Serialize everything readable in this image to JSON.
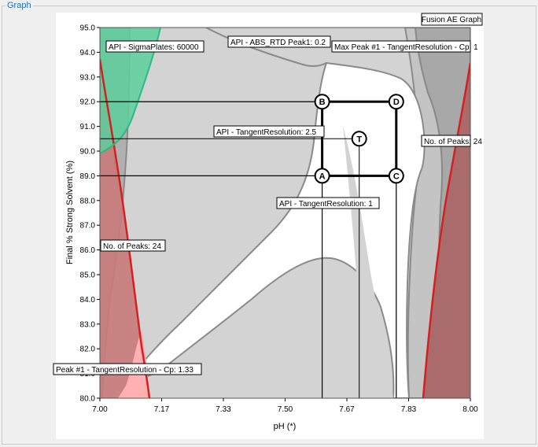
{
  "group": {
    "title": "Graph"
  },
  "chart_data": {
    "type": "contour-overlay",
    "title": "Fusion AE Graph",
    "xlabel": "pH (*)",
    "ylabel": "Final % Strong Solvent (%)",
    "xlim": [
      7.0,
      8.0
    ],
    "ylim": [
      80.0,
      95.0
    ],
    "xticks": [
      "7.00",
      "7.17",
      "7.33",
      "7.50",
      "7.67",
      "7.83",
      "8.00"
    ],
    "xtick_values": [
      7.0,
      7.1667,
      7.3333,
      7.5,
      7.6667,
      7.8333,
      8.0
    ],
    "yticks": [
      "80.0",
      "81.0",
      "82.0",
      "83.0",
      "84.0",
      "85.0",
      "86.0",
      "87.0",
      "88.0",
      "89.0",
      "90.0",
      "91.0",
      "92.0",
      "93.0",
      "94.0",
      "95.0"
    ],
    "ytick_values": [
      80,
      81,
      82,
      83,
      84,
      85,
      86,
      87,
      88,
      89,
      90,
      91,
      92,
      93,
      94,
      95
    ],
    "colors": {
      "fail_gray": "#d3d3d3",
      "edge_gray": "#8a8a8a",
      "dark_region": "#a8a8a8",
      "red_region": "#c97a7a",
      "red_line": "#d42020",
      "green_region": "#5ccf9c",
      "pink_region": "#ffb0b0",
      "white_region": "#ffffff"
    },
    "design_points": [
      {
        "label": "A",
        "x": 7.6,
        "y": 89.0
      },
      {
        "label": "B",
        "x": 7.6,
        "y": 92.0
      },
      {
        "label": "C",
        "x": 7.8,
        "y": 89.0
      },
      {
        "label": "D",
        "x": 7.8,
        "y": 92.0
      },
      {
        "label": "T",
        "x": 7.7,
        "y": 90.5
      }
    ],
    "box": {
      "x": [
        7.6,
        7.8
      ],
      "y": [
        89.0,
        92.0
      ]
    },
    "annotations": [
      "API - SigmaPlates: 60000",
      "API - ABS_RTD Peak1: 0.2",
      "Max Peak #1 - TangentResolution - Cp: 1",
      "API - TangentResolution: 2.5",
      "No. of Peaks: 24",
      "API - TangentResolution: 1",
      "No. of Peaks: 24",
      "Peak #1 - TangentResolution - Cp: 1.33"
    ]
  }
}
